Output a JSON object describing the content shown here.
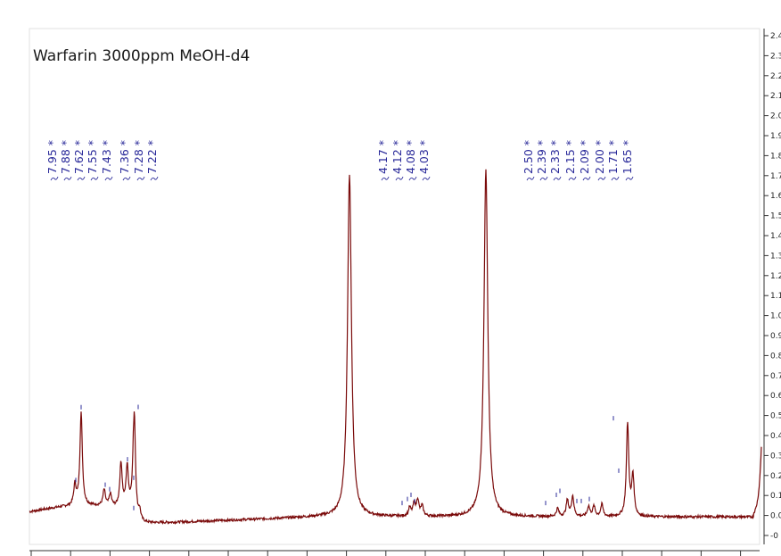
{
  "chart_data": {
    "type": "line",
    "title": "Warfarin 3000ppm MeOH-d4",
    "xlabel": "",
    "ylabel": "",
    "ylim": [
      -0.05,
      2.4
    ],
    "line_color": "#7a0a0a",
    "label_color": "#2b2b9a",
    "y_ticks": [
      "2.4",
      "2.3",
      "2.2",
      "2.1",
      "2.0",
      "1.9",
      "1.8",
      "1.7",
      "1.6",
      "1.5",
      "1.4",
      "1.3",
      "1.2",
      "1.1",
      "1.0",
      "0.9",
      "0.8",
      "0.7",
      "0.6",
      "0.5",
      "0.4",
      "0.3",
      "0.2",
      "0.1",
      "0.0",
      "-0"
    ],
    "peak_labels": [
      "7.95 *",
      "7.88 *",
      "7.62 *",
      "7.55 *",
      "7.43 *",
      "7.36 *",
      "7.28 *",
      "7.22 *",
      "4.17 *",
      "4.12 *",
      "4.08 *",
      "4.03 *",
      "2.50 *",
      "2.39 *",
      "2.33 *",
      "2.15 *",
      "2.09 *",
      "2.00 *",
      "1.71 *",
      "1.65 *"
    ],
    "peaks": [
      {
        "ppm": 7.95,
        "height": 0.1
      },
      {
        "ppm": 7.88,
        "height": 0.46
      },
      {
        "ppm": 7.62,
        "height": 0.08
      },
      {
        "ppm": 7.55,
        "height": 0.06
      },
      {
        "ppm": 7.43,
        "height": 0.22
      },
      {
        "ppm": 7.36,
        "height": 0.2
      },
      {
        "ppm": 7.28,
        "height": 0.55
      },
      {
        "ppm": 7.22,
        "height": 0.05
      },
      {
        "ppm": 4.85,
        "height": 1.7
      },
      {
        "ppm": 4.17,
        "height": 0.04
      },
      {
        "ppm": 4.12,
        "height": 0.06
      },
      {
        "ppm": 4.08,
        "height": 0.08
      },
      {
        "ppm": 4.03,
        "height": 0.05
      },
      {
        "ppm": 3.31,
        "height": 1.72
      },
      {
        "ppm": 2.5,
        "height": 0.04
      },
      {
        "ppm": 2.39,
        "height": 0.08
      },
      {
        "ppm": 2.33,
        "height": 0.1
      },
      {
        "ppm": 2.15,
        "height": 0.05
      },
      {
        "ppm": 2.09,
        "height": 0.05
      },
      {
        "ppm": 2.0,
        "height": 0.06
      },
      {
        "ppm": 1.71,
        "height": 0.46
      },
      {
        "ppm": 1.65,
        "height": 0.2
      }
    ]
  }
}
